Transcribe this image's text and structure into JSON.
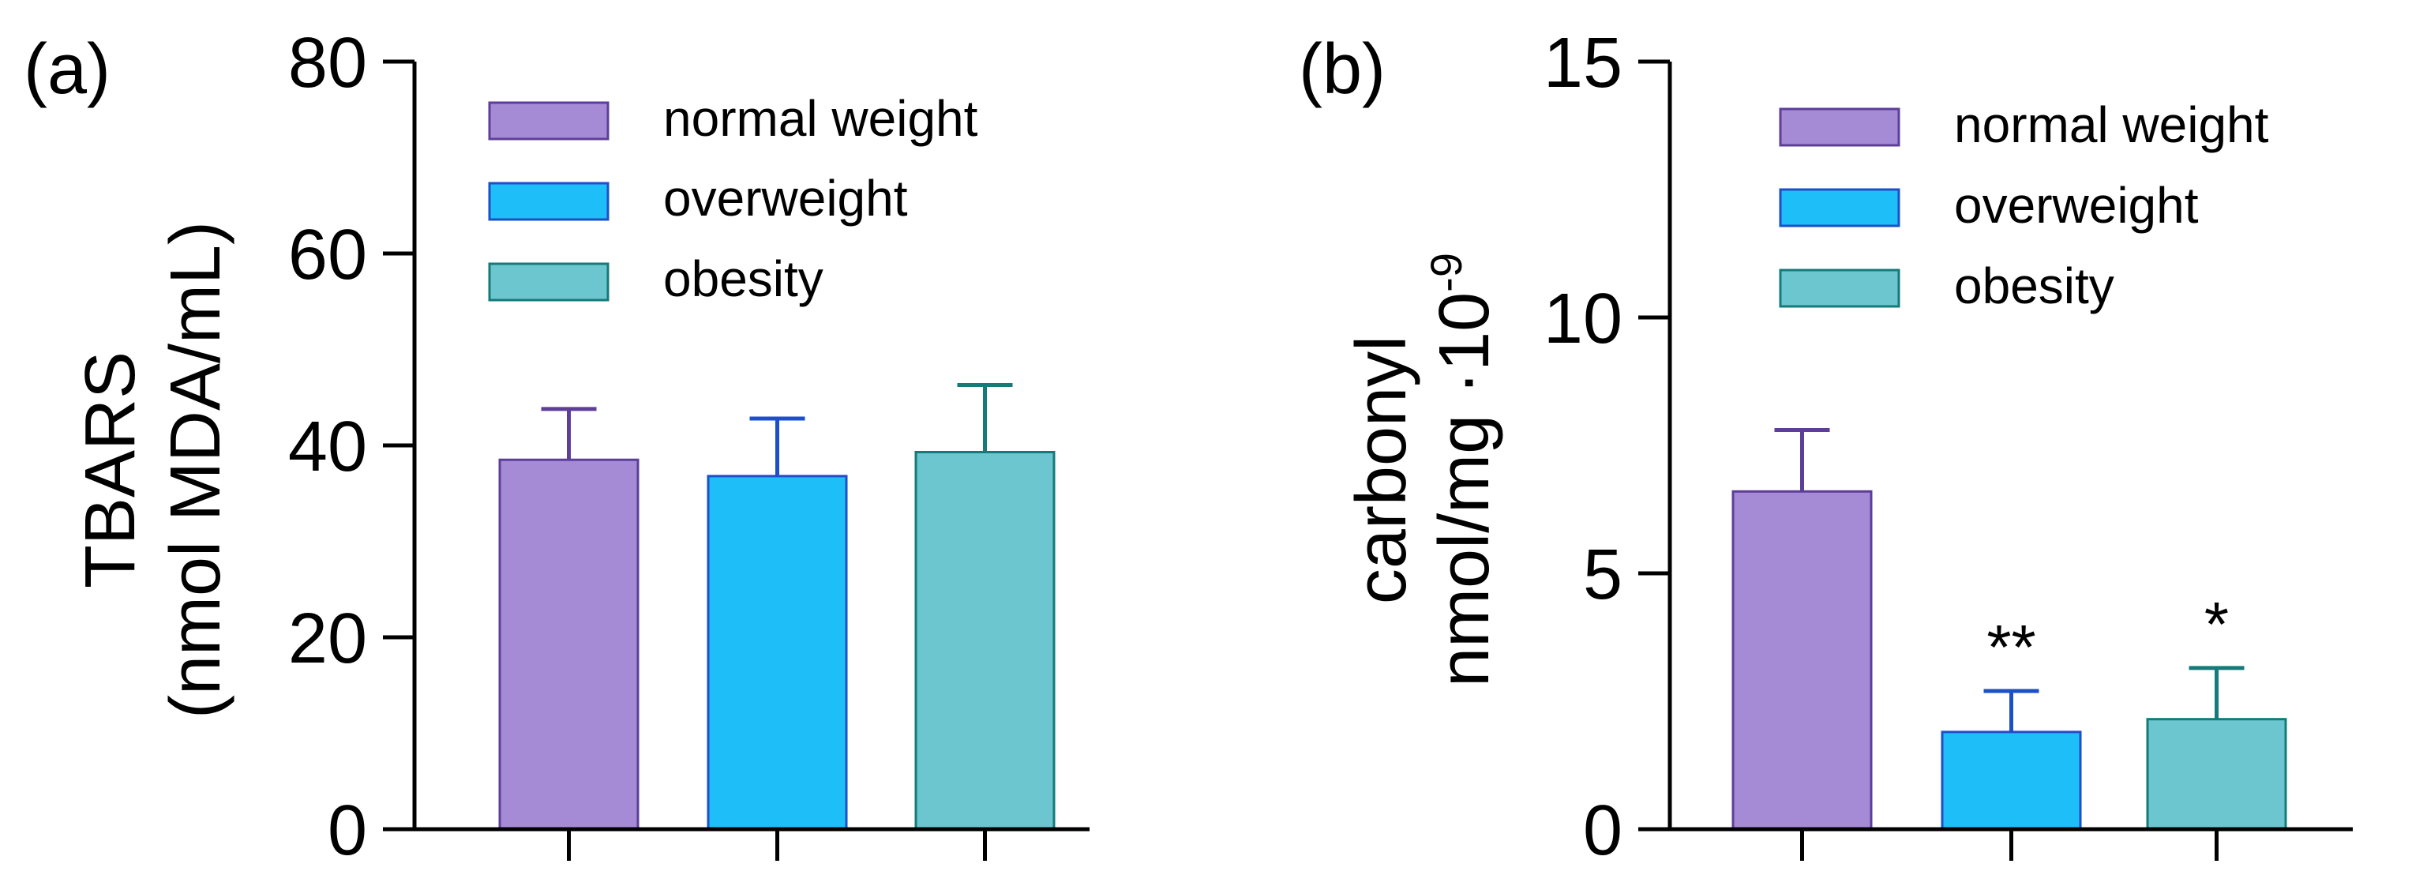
{
  "chart_data": [
    {
      "type": "bar",
      "panel_label": "(a)",
      "categories": [
        "normal weight",
        "overweight",
        "obesity"
      ],
      "values": [
        38.5,
        36.8,
        39.3
      ],
      "errors": [
        5.3,
        6.0,
        7.0
      ],
      "significance": [
        "",
        "",
        ""
      ],
      "ylim": [
        0,
        80
      ],
      "yticks": [
        "0",
        "20",
        "40",
        "60",
        "80"
      ],
      "ylabel_line1": "TBARS",
      "ylabel_line2": "(nmol MDA/mL)",
      "legend": [
        "normal weight",
        "overweight",
        "obesity"
      ],
      "legend_position": "top-right",
      "grid": false
    },
    {
      "type": "bar",
      "panel_label": "(b)",
      "categories": [
        "normal weight",
        "overweight",
        "obesity"
      ],
      "values": [
        6.6,
        1.9,
        2.15
      ],
      "errors": [
        1.2,
        0.8,
        1.0
      ],
      "significance": [
        "",
        "**",
        "*"
      ],
      "ylim": [
        0,
        15
      ],
      "yticks": [
        "0",
        "5",
        "10",
        "15"
      ],
      "ylabel_line1": "carbonyl",
      "ylabel_line2": "nmol/mg ·10",
      "ylabel_superscript": "-9",
      "legend": [
        "normal weight",
        "overweight",
        "obesity"
      ],
      "legend_position": "top-right",
      "grid": false
    }
  ],
  "colors": {
    "normal_weight_fill": "#A58AD5",
    "normal_weight_stroke": "#5D3F9A",
    "overweight_fill": "#1EBEF8",
    "overweight_stroke": "#1D4FC8",
    "obesity_fill": "#6CC6CF",
    "obesity_stroke": "#157A7A"
  }
}
